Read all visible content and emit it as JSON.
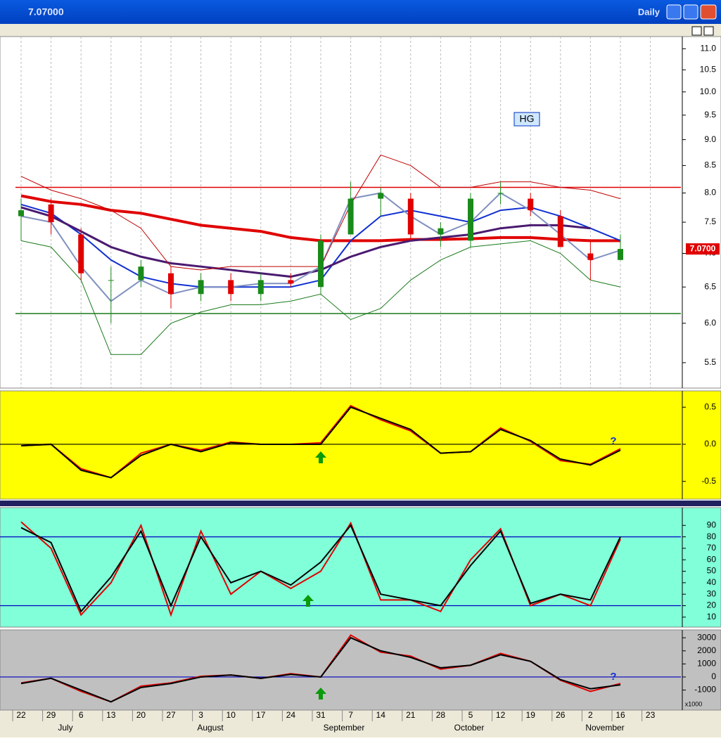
{
  "window": {
    "title": "7.07000",
    "interval": "Daily"
  },
  "x_axis": {
    "categories": [
      "22",
      "29",
      "6",
      "13",
      "20",
      "27",
      "3",
      "10",
      "17",
      "24",
      "31",
      "7",
      "14",
      "21",
      "28",
      "5",
      "12",
      "19",
      "26",
      "2",
      "16",
      "23"
    ],
    "months": [
      "July",
      "August",
      "September",
      "October",
      "November"
    ]
  },
  "chart_data": [
    {
      "type": "candlestick",
      "label": "HG",
      "last_label": "7.0700",
      "log_scale": true,
      "ylim": [
        5.2,
        11.3
      ],
      "yticks": [
        {
          "value": 5.5,
          "label": "5.5"
        },
        {
          "value": 6,
          "label": "6.0"
        },
        {
          "value": 6.5,
          "label": "6.5"
        },
        {
          "value": 7,
          "label": "7.0"
        },
        {
          "value": 7.5,
          "label": "7.5"
        },
        {
          "value": 8,
          "label": "8.0"
        },
        {
          "value": 8.5,
          "label": "8.5"
        },
        {
          "value": 9,
          "label": "9.0"
        },
        {
          "value": 9.5,
          "label": "9.5"
        },
        {
          "value": 10,
          "label": "10.0"
        },
        {
          "value": 10.5,
          "label": "10.5"
        },
        {
          "value": 11,
          "label": "11.0"
        }
      ],
      "open": [
        7.6,
        7.8,
        7.3,
        6.6,
        6.6,
        6.7,
        6.4,
        6.6,
        6.4,
        6.6,
        6.5,
        7.3,
        7.9,
        7.9,
        7.3,
        7.2,
        8.0,
        7.9,
        7.6,
        7.0,
        6.9,
        null
      ],
      "high": [
        7.9,
        7.9,
        7.4,
        6.8,
        6.9,
        6.8,
        6.7,
        6.7,
        6.7,
        6.7,
        7.3,
        8.2,
        8.1,
        8.0,
        7.5,
        8.0,
        8.2,
        8.0,
        7.7,
        7.2,
        7.3,
        null
      ],
      "low": [
        7.2,
        7.3,
        6.6,
        6.0,
        6.5,
        6.2,
        6.3,
        6.3,
        6.3,
        6.5,
        6.4,
        7.3,
        7.6,
        7.2,
        7.1,
        7.1,
        7.8,
        7.6,
        7.1,
        6.6,
        6.9,
        null
      ],
      "close": [
        7.7,
        7.5,
        6.7,
        6.6,
        6.8,
        6.4,
        6.6,
        6.4,
        6.6,
        6.55,
        7.2,
        7.9,
        8.0,
        7.3,
        7.4,
        7.9,
        8.0,
        7.7,
        7.1,
        6.9,
        7.07,
        null
      ],
      "up_color": "#1a8a1a",
      "down_color": "#e00000",
      "hlines": [
        {
          "value": 8.1,
          "color": "#e00000"
        },
        {
          "value": 6.13,
          "color": "#1a7a1a"
        }
      ],
      "series": [
        {
          "color": "#e00000",
          "width": 4,
          "values": [
            7.95,
            7.85,
            7.8,
            7.7,
            7.65,
            7.55,
            7.45,
            7.4,
            7.35,
            7.25,
            7.2,
            7.2,
            7.2,
            7.22,
            7.22,
            7.23,
            7.25,
            7.25,
            7.22,
            7.2,
            7.2,
            null
          ]
        },
        {
          "color": "#1030d0",
          "width": 2,
          "values": [
            7.8,
            7.65,
            7.3,
            6.9,
            6.65,
            6.55,
            6.5,
            6.5,
            6.5,
            6.5,
            6.6,
            7.2,
            7.6,
            7.7,
            7.6,
            7.5,
            7.7,
            7.75,
            7.6,
            7.4,
            7.2,
            null
          ]
        },
        {
          "color": "#4a1a70",
          "width": 3,
          "values": [
            7.75,
            7.6,
            7.35,
            7.1,
            6.95,
            6.85,
            6.8,
            6.75,
            6.7,
            6.65,
            6.75,
            6.95,
            7.1,
            7.2,
            7.25,
            7.3,
            7.4,
            7.45,
            7.45,
            7.4,
            null,
            null
          ]
        },
        {
          "color": "#8090c0",
          "width": 2,
          "values": [
            7.6,
            7.5,
            6.8,
            6.3,
            6.6,
            6.4,
            6.5,
            6.5,
            6.55,
            6.55,
            6.8,
            7.9,
            8.0,
            7.6,
            7.3,
            7.5,
            8.0,
            7.7,
            7.3,
            6.9,
            7.05,
            null
          ]
        },
        {
          "color": "#c00000",
          "width": 1,
          "values": [
            8.3,
            8.05,
            7.9,
            7.7,
            7.4,
            6.8,
            6.75,
            6.8,
            6.8,
            6.8,
            6.8,
            7.8,
            8.7,
            8.5,
            8.1,
            8.1,
            8.2,
            8.2,
            8.1,
            8.05,
            7.9,
            null
          ]
        },
        {
          "color": "#1a7a1a",
          "width": 1,
          "values": [
            7.2,
            7.1,
            6.6,
            5.6,
            5.6,
            6.0,
            6.15,
            6.25,
            6.25,
            6.3,
            6.4,
            6.05,
            6.2,
            6.6,
            6.9,
            7.1,
            7.15,
            7.2,
            7.0,
            6.6,
            6.5,
            null
          ]
        }
      ]
    },
    {
      "type": "line",
      "background": "#ffff00",
      "ylim": [
        -0.74,
        0.72
      ],
      "yticks": [
        {
          "value": -0.5,
          "label": "-0.5"
        },
        {
          "value": 0,
          "label": "0.0"
        },
        0.5
      ],
      "note": "?",
      "hlines": [
        {
          "value": 0,
          "color": "#000000"
        }
      ],
      "series": [
        {
          "color": "#e00000",
          "width": 2,
          "values": [
            -0.02,
            0.0,
            -0.33,
            -0.45,
            -0.12,
            0.0,
            -0.08,
            0.03,
            0.0,
            0.0,
            0.02,
            0.52,
            0.33,
            0.18,
            -0.12,
            -0.1,
            0.22,
            0.04,
            -0.22,
            -0.27,
            -0.06,
            null
          ]
        },
        {
          "color": "#000000",
          "width": 2,
          "values": [
            -0.02,
            0.0,
            -0.35,
            -0.45,
            -0.15,
            0.0,
            -0.1,
            0.02,
            0.0,
            0.0,
            0.0,
            0.5,
            0.35,
            0.2,
            -0.12,
            -0.1,
            0.2,
            0.05,
            -0.2,
            -0.28,
            -0.08,
            null
          ]
        }
      ]
    },
    {
      "type": "line",
      "background": "#80ffd8",
      "ylim": [
        1.3,
        105.5
      ],
      "yticks": [
        10,
        20,
        30,
        40,
        50,
        60,
        70,
        80,
        90
      ],
      "hlines": [
        {
          "value": 80,
          "color": "#0000c0"
        },
        {
          "value": 20,
          "color": "#0000c0"
        }
      ],
      "series": [
        {
          "color": "#e00000",
          "width": 2,
          "values": [
            93,
            70,
            12,
            40,
            90,
            12,
            85,
            30,
            50,
            35,
            50,
            92,
            25,
            25,
            15,
            60,
            87,
            20,
            30,
            20,
            78,
            null
          ]
        },
        {
          "color": "#000000",
          "width": 2,
          "values": [
            88,
            75,
            15,
            45,
            85,
            20,
            80,
            40,
            50,
            38,
            58,
            90,
            30,
            25,
            20,
            55,
            85,
            22,
            30,
            25,
            80,
            null
          ]
        }
      ]
    },
    {
      "type": "line",
      "background": "#c0c0c0",
      "ylim": [
        -2530,
        3600
      ],
      "yticks": [
        -1000,
        0,
        1000,
        2000,
        3000
      ],
      "note": "?",
      "scale_label": "x1000",
      "hlines": [
        {
          "value": 0,
          "color": "#0000c0"
        }
      ],
      "series": [
        {
          "color": "#e00000",
          "width": 2,
          "values": [
            -450,
            -100,
            -1100,
            -1900,
            -700,
            -450,
            50,
            150,
            -100,
            250,
            0,
            3200,
            1900,
            1600,
            600,
            900,
            1800,
            1200,
            -250,
            -1100,
            -500,
            null
          ]
        },
        {
          "color": "#000000",
          "width": 2,
          "values": [
            -500,
            -100,
            -1000,
            -1900,
            -800,
            -500,
            0,
            150,
            -100,
            200,
            0,
            3000,
            2000,
            1500,
            700,
            900,
            1700,
            1200,
            -200,
            -900,
            -600,
            null
          ]
        }
      ]
    }
  ]
}
